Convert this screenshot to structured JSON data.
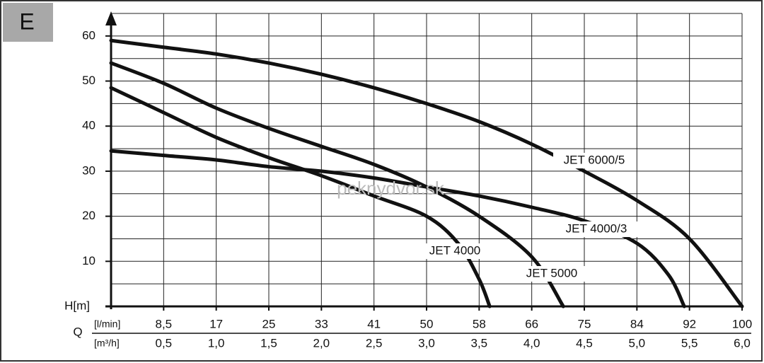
{
  "panel_label": "E",
  "watermark": "peknydvor.sk",
  "chart_data": {
    "type": "line",
    "x_label": "Q",
    "y_label": "H[m]",
    "x_unit_label": "[m³/h]",
    "x2_unit_label": "[l/min]",
    "xlim": [
      0,
      6.0
    ],
    "ylim": [
      0,
      65
    ],
    "xticks": [
      {
        "value": 0.5,
        "label": "0,5"
      },
      {
        "value": 1.0,
        "label": "1,0"
      },
      {
        "value": 1.5,
        "label": "1,5"
      },
      {
        "value": 2.0,
        "label": "2,0"
      },
      {
        "value": 2.5,
        "label": "2,5"
      },
      {
        "value": 3.0,
        "label": "3,0"
      },
      {
        "value": 3.5,
        "label": "3,5"
      },
      {
        "value": 4.0,
        "label": "4,0"
      },
      {
        "value": 4.5,
        "label": "4,5"
      },
      {
        "value": 5.0,
        "label": "5,0"
      },
      {
        "value": 5.5,
        "label": "5,5"
      },
      {
        "value": 6.0,
        "label": "6,0"
      }
    ],
    "x2ticks": [
      {
        "value": 0.5,
        "label": "8,5"
      },
      {
        "value": 1.0,
        "label": "17"
      },
      {
        "value": 1.5,
        "label": "25"
      },
      {
        "value": 2.0,
        "label": "33"
      },
      {
        "value": 2.5,
        "label": "41"
      },
      {
        "value": 3.0,
        "label": "50"
      },
      {
        "value": 3.5,
        "label": "58"
      },
      {
        "value": 4.0,
        "label": "66"
      },
      {
        "value": 4.5,
        "label": "75"
      },
      {
        "value": 5.0,
        "label": "84"
      },
      {
        "value": 5.5,
        "label": "92"
      },
      {
        "value": 6.0,
        "label": "100"
      }
    ],
    "yticks": [
      10,
      20,
      30,
      40,
      50,
      60
    ],
    "y_minor_ticks": [
      5,
      15,
      25,
      35,
      45,
      55,
      65
    ],
    "grid": true,
    "series": [
      {
        "name": "JET 6000/5",
        "color": "#111111",
        "x": [
          0,
          0.5,
          1.0,
          1.5,
          2.0,
          2.5,
          3.0,
          3.5,
          4.0,
          4.5,
          5.0,
          5.5,
          6.0
        ],
        "values": [
          59,
          57.5,
          56,
          54,
          51.5,
          48.5,
          45,
          41,
          36,
          30,
          23.5,
          15,
          0
        ]
      },
      {
        "name": "JET 4000/3",
        "color": "#111111",
        "x": [
          0,
          0.5,
          1.0,
          1.5,
          2.0,
          2.5,
          3.0,
          3.5,
          4.0,
          4.5,
          5.0,
          5.3,
          5.45
        ],
        "values": [
          34.5,
          33.5,
          32.5,
          31,
          30,
          28.5,
          26.5,
          24.5,
          22,
          19,
          14,
          7,
          0
        ]
      },
      {
        "name": "JET 5000",
        "color": "#111111",
        "x": [
          0,
          0.5,
          1.0,
          1.5,
          2.0,
          2.5,
          3.0,
          3.5,
          4.0,
          4.3
        ],
        "values": [
          54,
          49.5,
          44,
          39.5,
          35.5,
          31.5,
          26.5,
          20,
          11,
          0
        ]
      },
      {
        "name": "JET 4000",
        "color": "#111111",
        "x": [
          0,
          0.5,
          1.0,
          1.5,
          2.0,
          2.5,
          3.0,
          3.3,
          3.5,
          3.6
        ],
        "values": [
          48.5,
          43,
          37.5,
          33,
          29,
          24.5,
          20,
          14,
          6,
          0
        ]
      }
    ]
  }
}
